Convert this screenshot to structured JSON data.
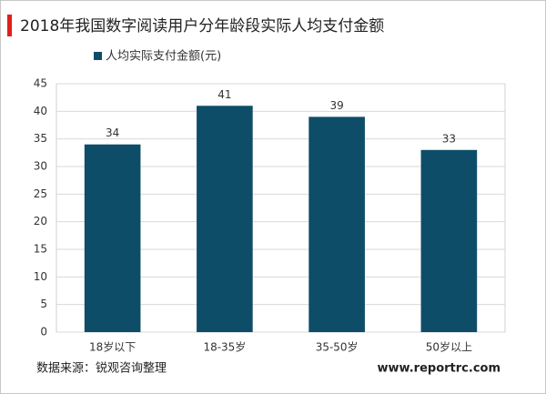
{
  "chart_data": {
    "type": "bar",
    "title": "2018年我国数字阅读用户分年龄段实际人均支付金额",
    "categories": [
      "18岁以下",
      "18-35岁",
      "35-50岁",
      "50岁以上"
    ],
    "series": [
      {
        "name": "人均实际支付金额(元)",
        "color": "#0e4d68",
        "values": [
          34,
          41,
          39,
          33
        ]
      }
    ],
    "ylim": [
      0,
      45
    ],
    "yticks": [
      0,
      5,
      10,
      15,
      20,
      25,
      30,
      35,
      40,
      45
    ],
    "grid": true,
    "source": "数据来源：锐观咨询整理",
    "website": "www.reportrc.com"
  }
}
